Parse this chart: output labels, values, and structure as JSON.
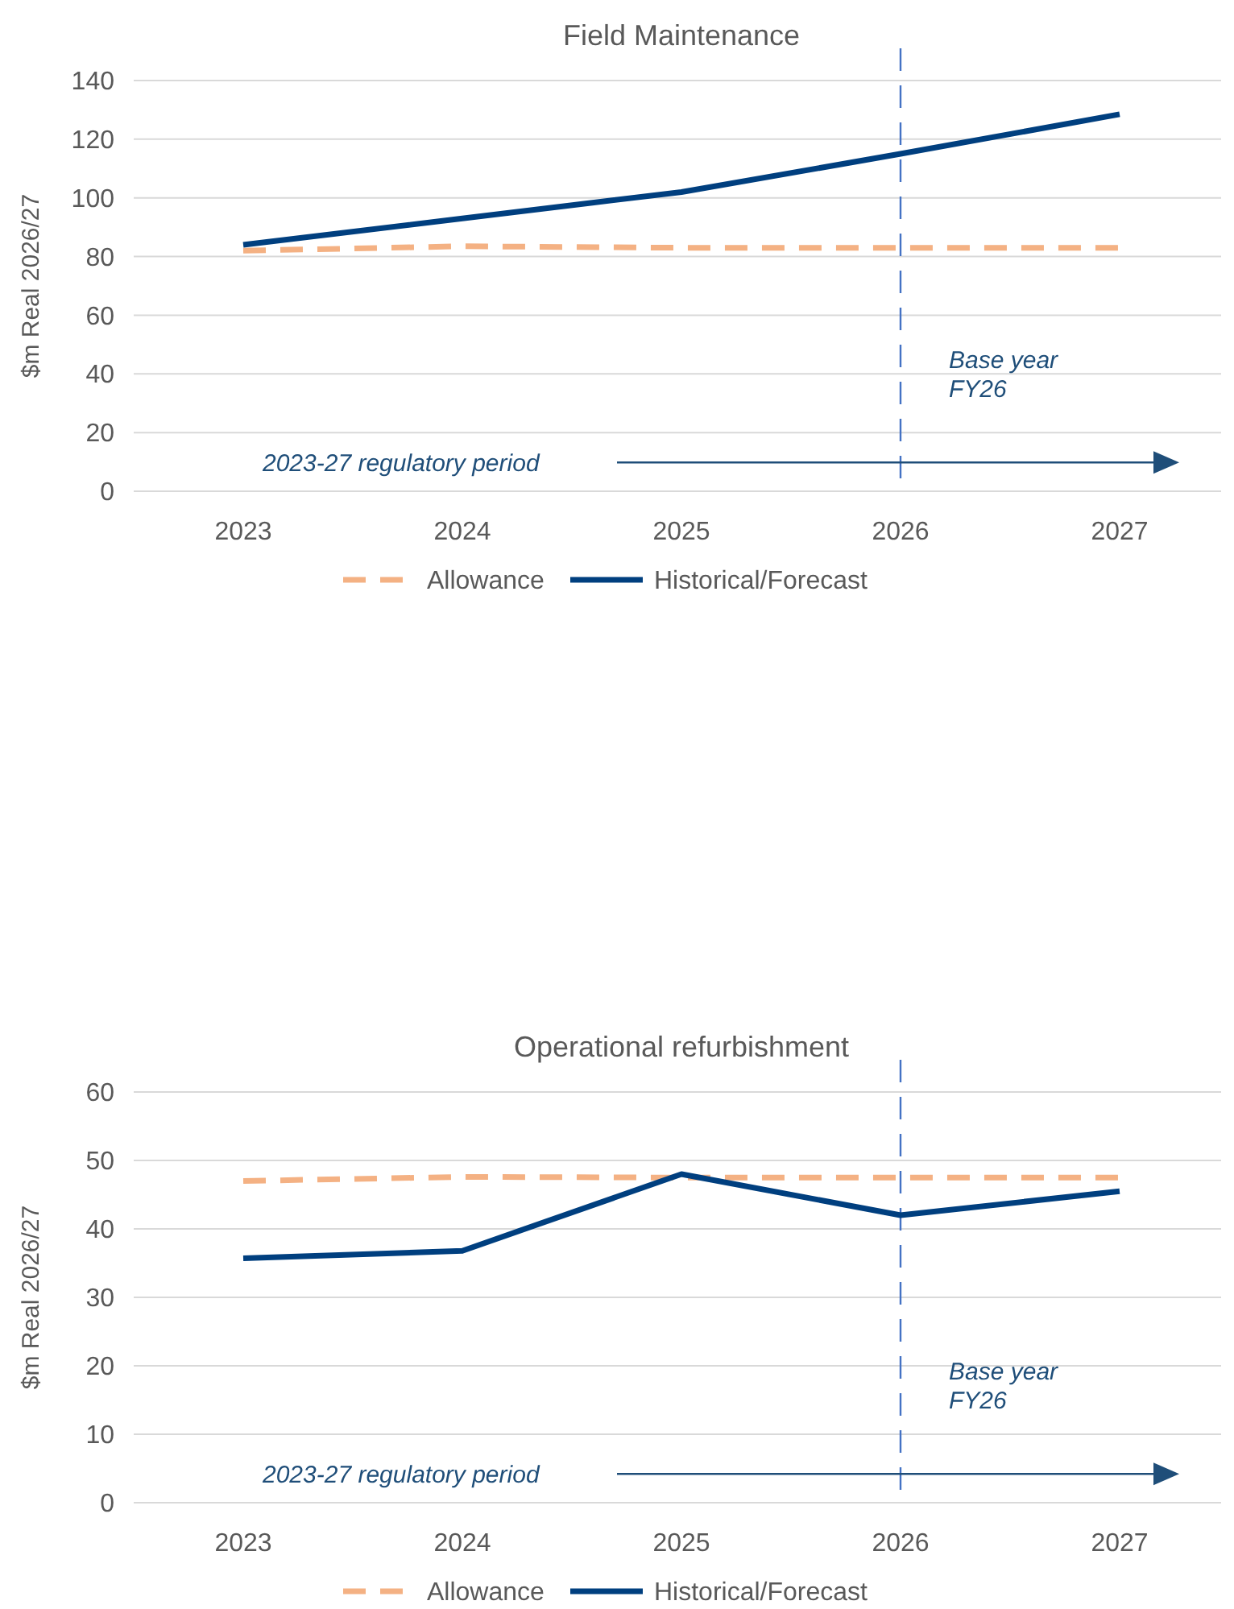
{
  "chart_data": [
    {
      "type": "line",
      "title": "Field Maintenance",
      "ylabel": "$m Real 2026/27",
      "categories": [
        "2023",
        "2024",
        "2025",
        "2026",
        "2027"
      ],
      "ylim": [
        0,
        140
      ],
      "yticks": [
        0,
        20,
        40,
        60,
        80,
        100,
        120,
        140
      ],
      "grid": "y",
      "legend": "bottom",
      "series": [
        {
          "name": "Allowance",
          "color": "#f4b183",
          "line_style": "dashed",
          "values": [
            82,
            83.5,
            83,
            83,
            83
          ]
        },
        {
          "name": "Historical/Forecast",
          "color": "#003f7f",
          "line_style": "solid",
          "values": [
            84,
            93,
            102,
            115,
            128.5
          ]
        }
      ],
      "ref_lines": [
        {
          "axis": "x",
          "value": "2026",
          "label": "Base year\nFY26",
          "color": "#4472c4",
          "line_style": "dashed"
        }
      ],
      "annotations": [
        "2023-27 regulatory period"
      ]
    },
    {
      "type": "line",
      "title": "Operational refurbishment",
      "ylabel": "$m Real 2026/27",
      "categories": [
        "2023",
        "2024",
        "2025",
        "2026",
        "2027"
      ],
      "ylim": [
        0,
        60
      ],
      "yticks": [
        0,
        10,
        20,
        30,
        40,
        50,
        60
      ],
      "grid": "y",
      "legend": "bottom",
      "series": [
        {
          "name": "Allowance",
          "color": "#f4b183",
          "line_style": "dashed",
          "values": [
            47,
            47.6,
            47.5,
            47.5,
            47.5
          ]
        },
        {
          "name": "Historical/Forecast",
          "color": "#003f7f",
          "line_style": "solid",
          "values": [
            35.7,
            36.8,
            48,
            42,
            45.5
          ]
        }
      ],
      "ref_lines": [
        {
          "axis": "x",
          "value": "2026",
          "label": "Base year\nFY26",
          "color": "#4472c4",
          "line_style": "dashed"
        }
      ],
      "annotations": [
        "2023-27 regulatory period"
      ]
    }
  ]
}
